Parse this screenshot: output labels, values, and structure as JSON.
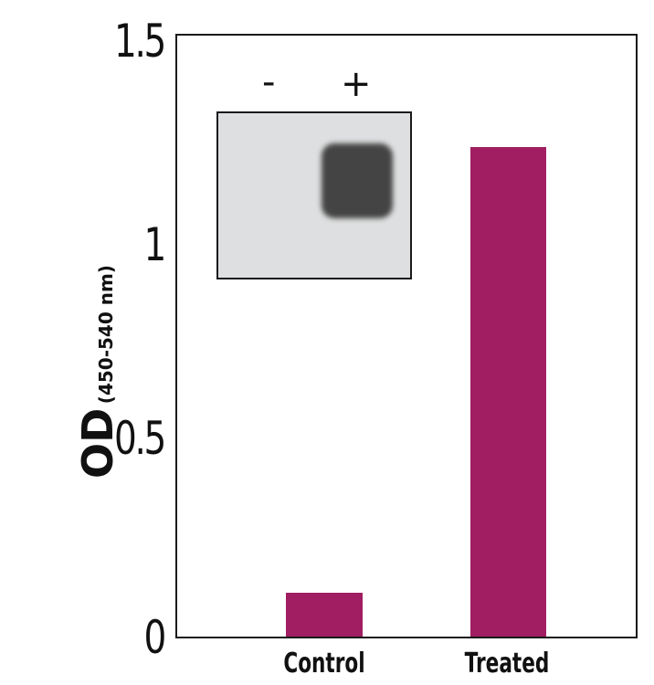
{
  "chart_data": {
    "type": "bar",
    "title": "",
    "categories": [
      "Control",
      "Treated"
    ],
    "values": [
      0.11,
      1.22
    ],
    "xlabel": "",
    "ylabel": "OD (450-540 nm)",
    "ylabel_main": "OD",
    "ylabel_sub": "(450-540 nm)",
    "ylim": [
      0,
      1.5
    ],
    "yticks": [
      "0",
      "0.5",
      "1",
      "1.5"
    ],
    "grid": false,
    "legend": null,
    "bar_color": "#a11e62",
    "inset": {
      "type": "western-blot",
      "lanes": [
        "-",
        "+"
      ],
      "band_in_lane": "+"
    }
  }
}
